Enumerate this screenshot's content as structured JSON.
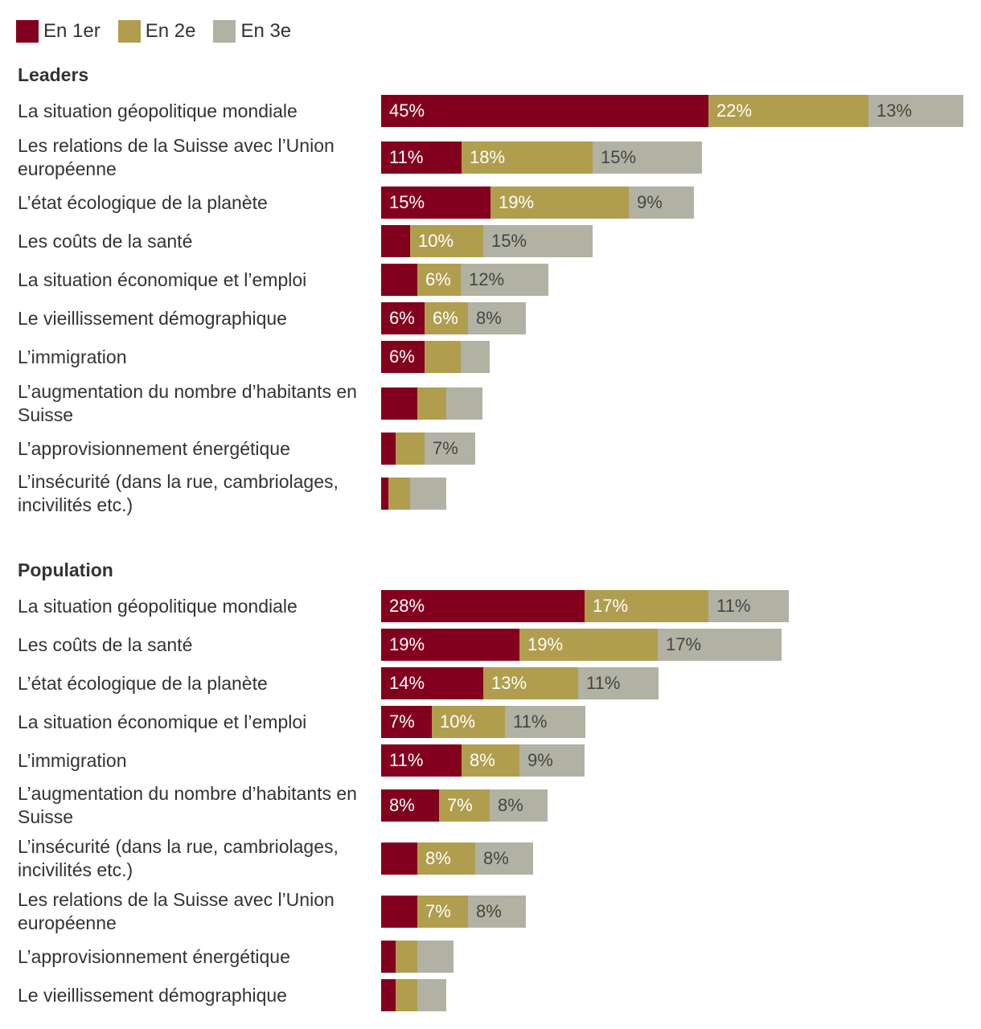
{
  "colors": {
    "first": "#82001e",
    "second": "#b09e4e",
    "third": "#b2b2a4",
    "text_first": "#ffffff",
    "text_second": "#ffffff",
    "text_third": "#444444"
  },
  "legend": [
    {
      "label": "En 1er",
      "color": "#82001e"
    },
    {
      "label": "En 2e",
      "color": "#b09e4e"
    },
    {
      "label": "En 3e",
      "color": "#b2b2a4"
    }
  ],
  "chart_data": [
    {
      "type": "bar",
      "stacked": true,
      "orientation": "horizontal",
      "title": "Leaders",
      "unit": "%",
      "categories": [
        "La situation géopolitique mondiale",
        "Les relations de la Suisse avec l’Union européenne",
        "L’état écologique de la planète",
        "Les coûts de la santé",
        "La situation économique et l’emploi",
        "Le vieillissement démographique",
        "L’immigration",
        "L’augmentation du nombre d’habitants en Suisse",
        "L’approvisionnement énergétique",
        "L’insécurité (dans la rue, cambriolages, incivilités etc.)"
      ],
      "series": [
        {
          "name": "En 1er",
          "values": [
            45,
            11,
            15,
            4,
            5,
            6,
            6,
            5,
            2,
            1
          ],
          "labels": [
            "45%",
            "11%",
            "15%",
            "",
            "",
            "6%",
            "6%",
            "",
            "",
            ""
          ]
        },
        {
          "name": "En 2e",
          "values": [
            22,
            18,
            19,
            10,
            6,
            6,
            5,
            4,
            4,
            3
          ],
          "labels": [
            "22%",
            "18%",
            "19%",
            "10%",
            "6%",
            "6%",
            "",
            "",
            "",
            ""
          ]
        },
        {
          "name": "En 3e",
          "values": [
            13,
            15,
            9,
            15,
            12,
            8,
            4,
            5,
            7,
            5
          ],
          "labels": [
            "13%",
            "15%",
            "9%",
            "15%",
            "12%",
            "8%",
            "",
            "",
            "7%",
            ""
          ]
        }
      ]
    },
    {
      "type": "bar",
      "stacked": true,
      "orientation": "horizontal",
      "title": "Population",
      "unit": "%",
      "categories": [
        "La situation géopolitique mondiale",
        "Les coûts de la santé",
        "L’état écologique de la planète",
        "La situation économique et l’emploi",
        "L’immigration",
        "L’augmentation du nombre d’habitants en Suisse",
        "L’insécurité (dans la rue, cambriolages, incivilités etc.)",
        "Les relations de la Suisse avec l’Union européenne",
        "L’approvisionnement énergétique",
        "Le vieillissement démographique"
      ],
      "series": [
        {
          "name": "En 1er",
          "values": [
            28,
            19,
            14,
            7,
            11,
            8,
            5,
            5,
            2,
            2
          ],
          "labels": [
            "28%",
            "19%",
            "14%",
            "7%",
            "11%",
            "8%",
            "",
            "",
            "",
            ""
          ]
        },
        {
          "name": "En 2e",
          "values": [
            17,
            19,
            13,
            10,
            8,
            7,
            8,
            7,
            3,
            3
          ],
          "labels": [
            "17%",
            "19%",
            "13%",
            "10%",
            "8%",
            "7%",
            "8%",
            "7%",
            "",
            ""
          ]
        },
        {
          "name": "En 3e",
          "values": [
            11,
            17,
            11,
            11,
            9,
            8,
            8,
            8,
            5,
            4
          ],
          "labels": [
            "11%",
            "17%",
            "11%",
            "11%",
            "9%",
            "8%",
            "8%",
            "8%",
            "",
            ""
          ]
        }
      ]
    }
  ]
}
